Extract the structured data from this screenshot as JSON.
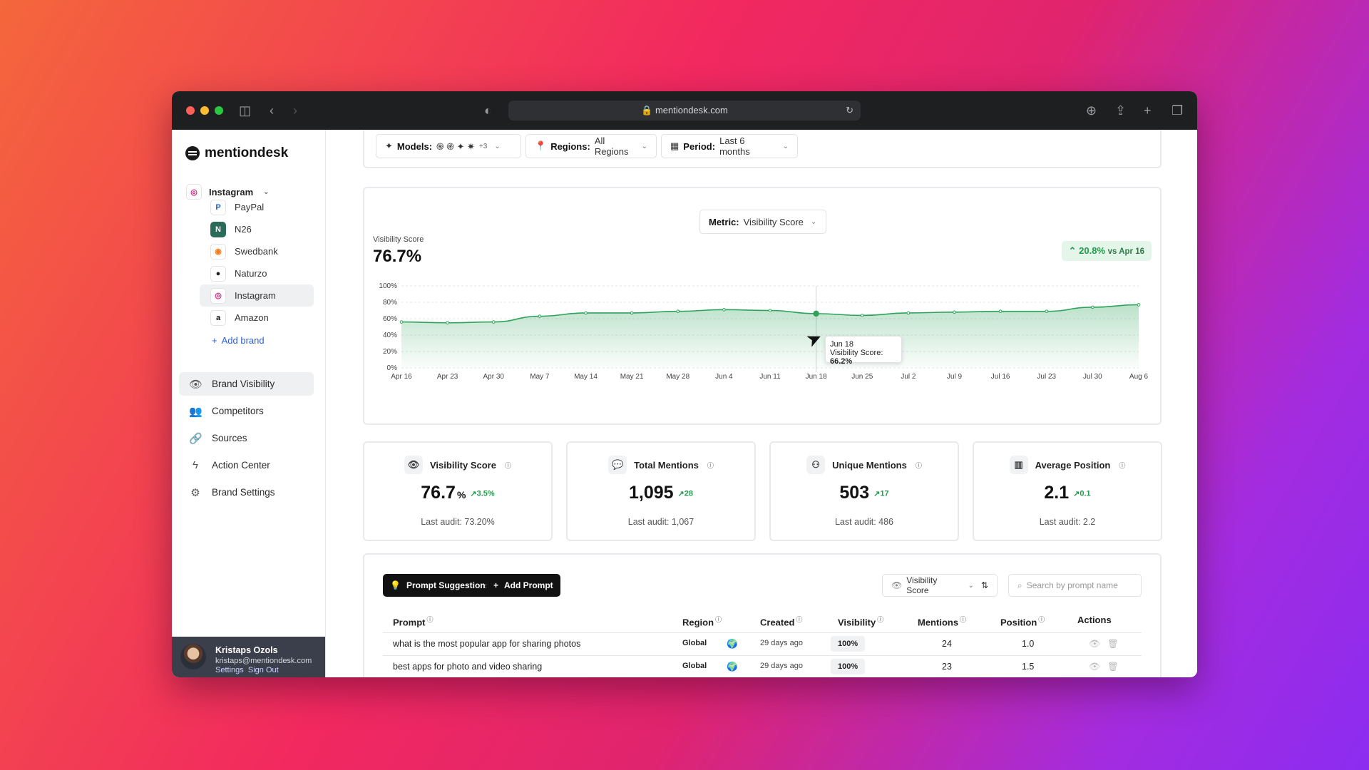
{
  "browser": {
    "url": "mentiondesk.com"
  },
  "sidebar": {
    "app_name": "mentiondesk",
    "current_brand": "Instagram",
    "brands": [
      {
        "label": "PayPal",
        "glyph": "P",
        "color": "#1f5fbf"
      },
      {
        "label": "N26",
        "glyph": "N",
        "color": "#2a6b5a"
      },
      {
        "label": "Swedbank",
        "glyph": "◉",
        "color": "#f07c1a"
      },
      {
        "label": "Naturzo",
        "glyph": "●",
        "color": "#222222"
      },
      {
        "label": "Instagram",
        "glyph": "◎",
        "color": "#d6287a"
      },
      {
        "label": "Amazon",
        "glyph": "a",
        "color": "#111111"
      }
    ],
    "add_brand": "Add brand",
    "nav": [
      {
        "label": "Brand Visibility",
        "icon": "eye-icon"
      },
      {
        "label": "Competitors",
        "icon": "users-icon"
      },
      {
        "label": "Sources",
        "icon": "link-icon"
      },
      {
        "label": "Action Center",
        "icon": "bolt-icon"
      },
      {
        "label": "Brand Settings",
        "icon": "gear-icon"
      }
    ],
    "user": {
      "name": "Kristaps Ozols",
      "email": "kristaps@mentiondesk.com",
      "settings": "Settings",
      "signout": "Sign Out"
    }
  },
  "filters": {
    "models_label": "Models:",
    "models_extra": "+3",
    "regions_label": "Regions:",
    "regions_value": "All Regions",
    "period_label": "Period:",
    "period_value": "Last 6 months"
  },
  "chart_section": {
    "metric_label": "Metric:",
    "metric_value": "Visibility Score",
    "title": "Visibility Score",
    "current": "76.7%",
    "change": "20.8%",
    "change_suffix": "vs Apr 16",
    "tooltip": {
      "date": "Jun 18",
      "label": "Visibility Score:",
      "value": "66.2%"
    }
  },
  "chart_data": {
    "type": "area",
    "title": "Visibility Score",
    "x": [
      "Apr 16",
      "Apr 23",
      "Apr 30",
      "May 7",
      "May 14",
      "May 21",
      "May 28",
      "Jun 4",
      "Jun 11",
      "Jun 18",
      "Jun 25",
      "Jul 2",
      "Jul 9",
      "Jul 16",
      "Jul 23",
      "Jul 30",
      "Aug 6"
    ],
    "series": [
      {
        "values": [
          56,
          55,
          56,
          63,
          67,
          67,
          69,
          71,
          70,
          66.2,
          64,
          67,
          68,
          69,
          69,
          74,
          77
        ]
      }
    ],
    "yticks": [
      "0%",
      "20%",
      "40%",
      "60%",
      "80%",
      "100%"
    ],
    "ylim": [
      0,
      100
    ],
    "grid": true,
    "color": "#2ea35a",
    "highlight_index": 9
  },
  "kpis": [
    {
      "title": "Visibility Score",
      "icon": "eye-icon",
      "value": "76.7",
      "unit": "%",
      "change": "3.5%",
      "last": "Last audit: 73.20%"
    },
    {
      "title": "Total Mentions",
      "icon": "chat-icon",
      "value": "1,095",
      "unit": "",
      "change": "28",
      "last": "Last audit: 1,067"
    },
    {
      "title": "Unique Mentions",
      "icon": "group-icon",
      "value": "503",
      "unit": "",
      "change": "17",
      "last": "Last audit: 486"
    },
    {
      "title": "Average Position",
      "icon": "bar-chart-icon",
      "value": "2.1",
      "unit": "",
      "change": "0.1",
      "last": "Last audit: 2.2"
    }
  ],
  "prompts": {
    "suggestions_btn": "Prompt Suggestions",
    "add_btn": "Add Prompt",
    "sort_value": "Visibility Score",
    "search_placeholder": "Search by prompt name",
    "columns": {
      "prompt": "Prompt",
      "region": "Region",
      "created": "Created",
      "visibility": "Visibility",
      "mentions": "Mentions",
      "position": "Position",
      "actions": "Actions"
    },
    "rows": [
      {
        "prompt": "what is the most popular app for sharing photos",
        "region": "Global",
        "created": "29 days ago",
        "visibility": "100%",
        "mentions": "24",
        "position": "1.0"
      },
      {
        "prompt": "best apps for photo and video sharing",
        "region": "Global",
        "created": "29 days ago",
        "visibility": "100%",
        "mentions": "23",
        "position": "1.5"
      }
    ]
  }
}
